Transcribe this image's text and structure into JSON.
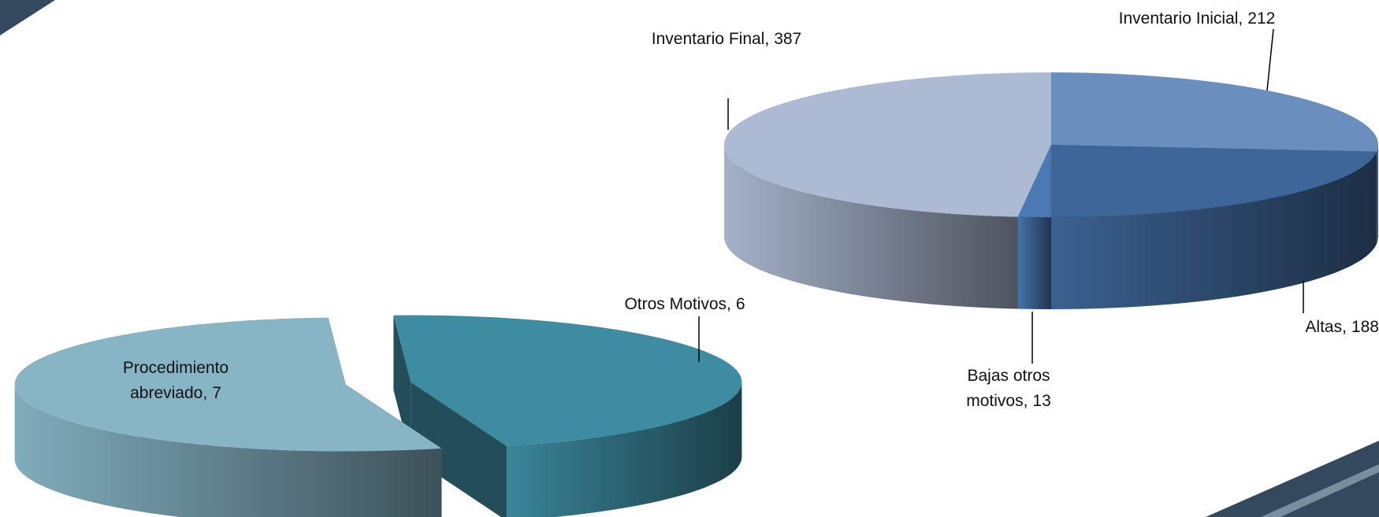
{
  "chart_data": [
    {
      "type": "pie",
      "categories": [
        "Inventario Inicial,",
        "Altas,",
        "Bajas otros motivos,",
        "Inventario Final,"
      ],
      "values": [
        212,
        188,
        13,
        387
      ],
      "colors": [
        "#6a8fbf",
        "#3e6698",
        "#4a79b3",
        "#adbad3"
      ]
    },
    {
      "type": "pie",
      "categories": [
        "Otros Motivos,",
        "Procedimiento abreviado,"
      ],
      "values": [
        6,
        7
      ],
      "colors": [
        "#3d8ca1",
        "#87b5c6"
      ]
    }
  ]
}
